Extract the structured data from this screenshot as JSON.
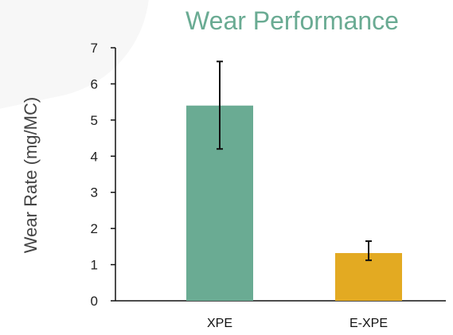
{
  "chart_data": {
    "type": "bar",
    "title": "Wear Performance",
    "xlabel": "",
    "ylabel": "Wear Rate (mg/MC)",
    "categories": [
      "XPE",
      "E-XPE"
    ],
    "values": [
      5.4,
      1.32
    ],
    "error_low": [
      4.2,
      1.12
    ],
    "error_high": [
      6.62,
      1.65
    ],
    "colors": [
      "#6aab93",
      "#e3aa22"
    ],
    "ylim": [
      0,
      7
    ],
    "yticks": [
      "0",
      "1",
      "2",
      "3",
      "4",
      "5",
      "6",
      "7"
    ],
    "grid": false,
    "legend": "none"
  }
}
